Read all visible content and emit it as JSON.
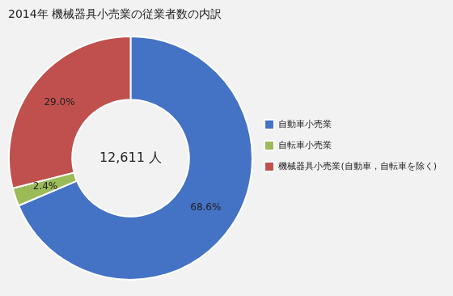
{
  "chart_data": {
    "type": "doughnut",
    "title": "2014年 機械器具小売業の従業者数の内訳",
    "annotation": "12,611 人",
    "categories": [
      "自動車小売業",
      "自転車小売業",
      "機械器具小売業(自動車，自転車を除く)"
    ],
    "values": [
      68.6,
      2.4,
      29.0
    ],
    "value_labels": [
      "68.6%",
      "2.4%",
      "29.0%"
    ],
    "colors": [
      "#4472C4",
      "#9BBB59",
      "#C0504D"
    ],
    "data_labels": true,
    "legend": "right"
  }
}
